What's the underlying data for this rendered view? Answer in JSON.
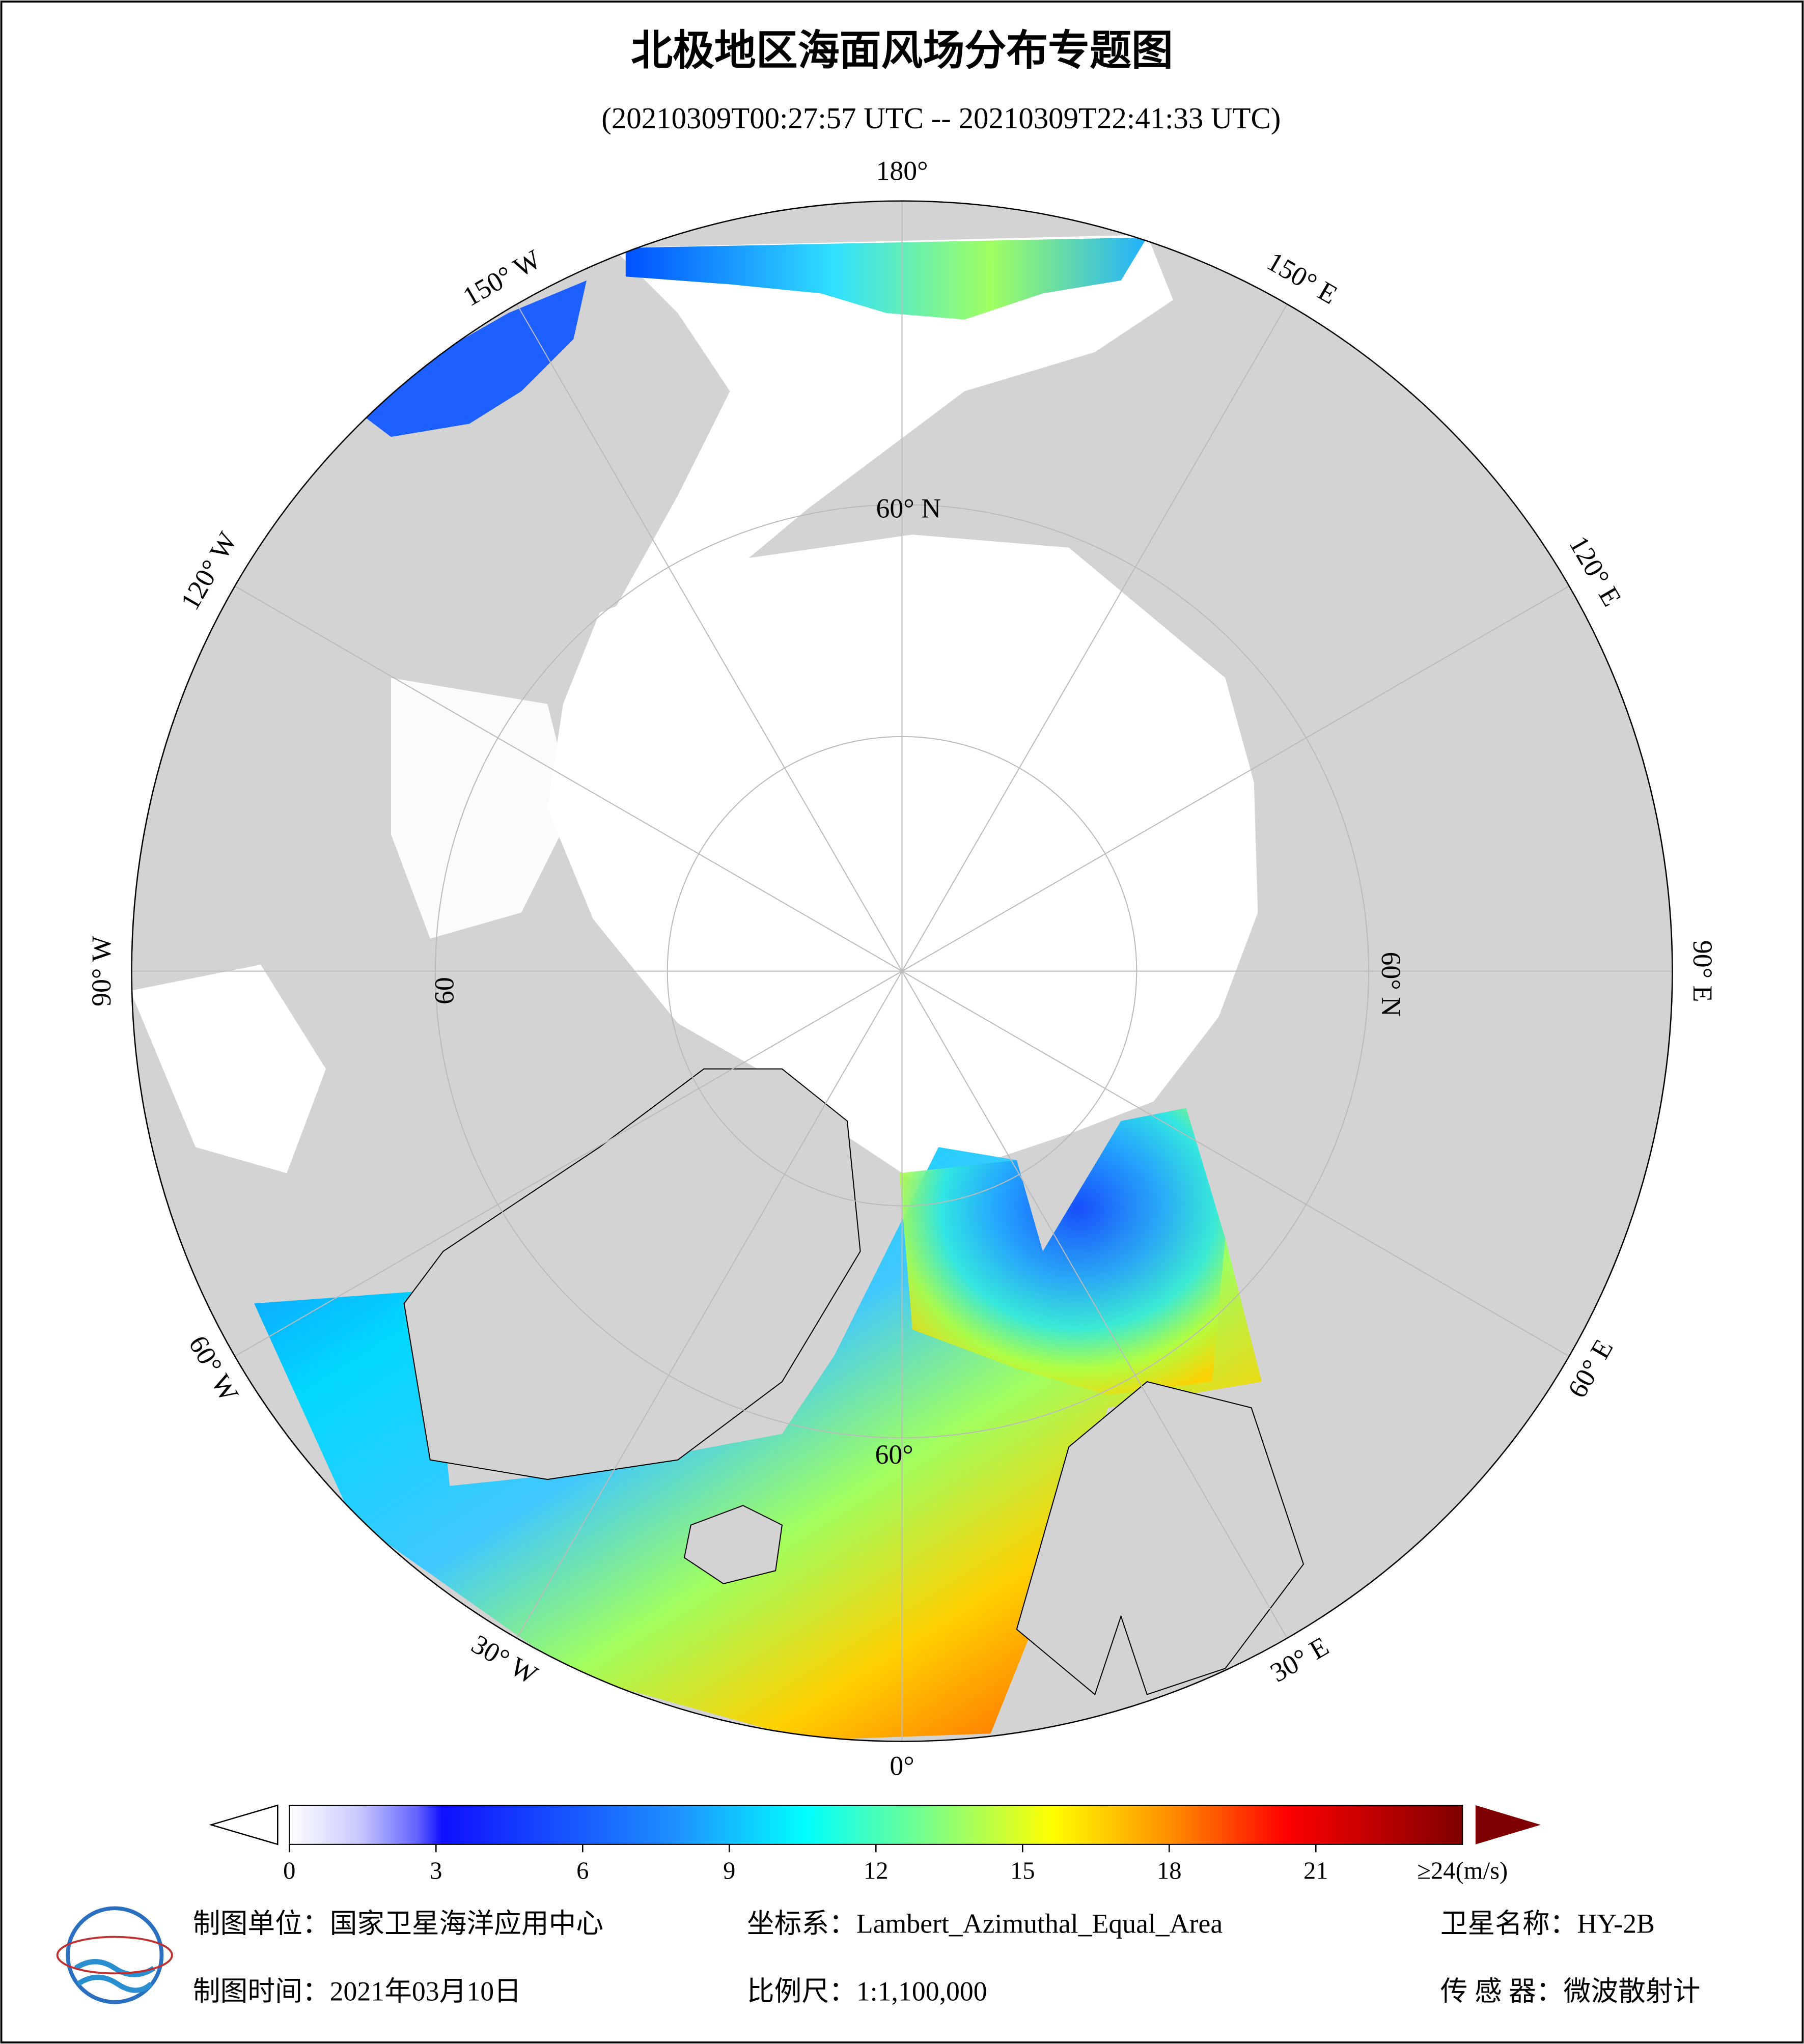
{
  "title": "北极地区海面风场分布专题图",
  "subtitle": "(20210309T00:27:57 UTC -- 20210309T22:41:33 UTC)",
  "map": {
    "longitude_labels": [
      "0°",
      "30° E",
      "60° E",
      "90° E",
      "120° E",
      "150° E",
      "180°",
      "150° W",
      "120° W",
      "90° W",
      "60° W",
      "30° W"
    ],
    "latitude_labels": [
      "60° N",
      "60° N",
      "60",
      "60°"
    ]
  },
  "colorbar": {
    "range": [
      0,
      24
    ],
    "ticks": [
      0,
      3,
      6,
      9,
      12,
      15,
      18,
      21
    ],
    "max_label": "≥24(m/s)"
  },
  "footer": {
    "unit": "制图单位：国家卫星海洋应用中心",
    "crs": "坐标系：Lambert_Azimuthal_Equal_Area",
    "satellite": "卫星名称：HY-2B",
    "date": "制图时间：2021年03月10日",
    "scale": "比例尺：1:1,100,000",
    "sensor": "传 感 器：微波散射计"
  }
}
